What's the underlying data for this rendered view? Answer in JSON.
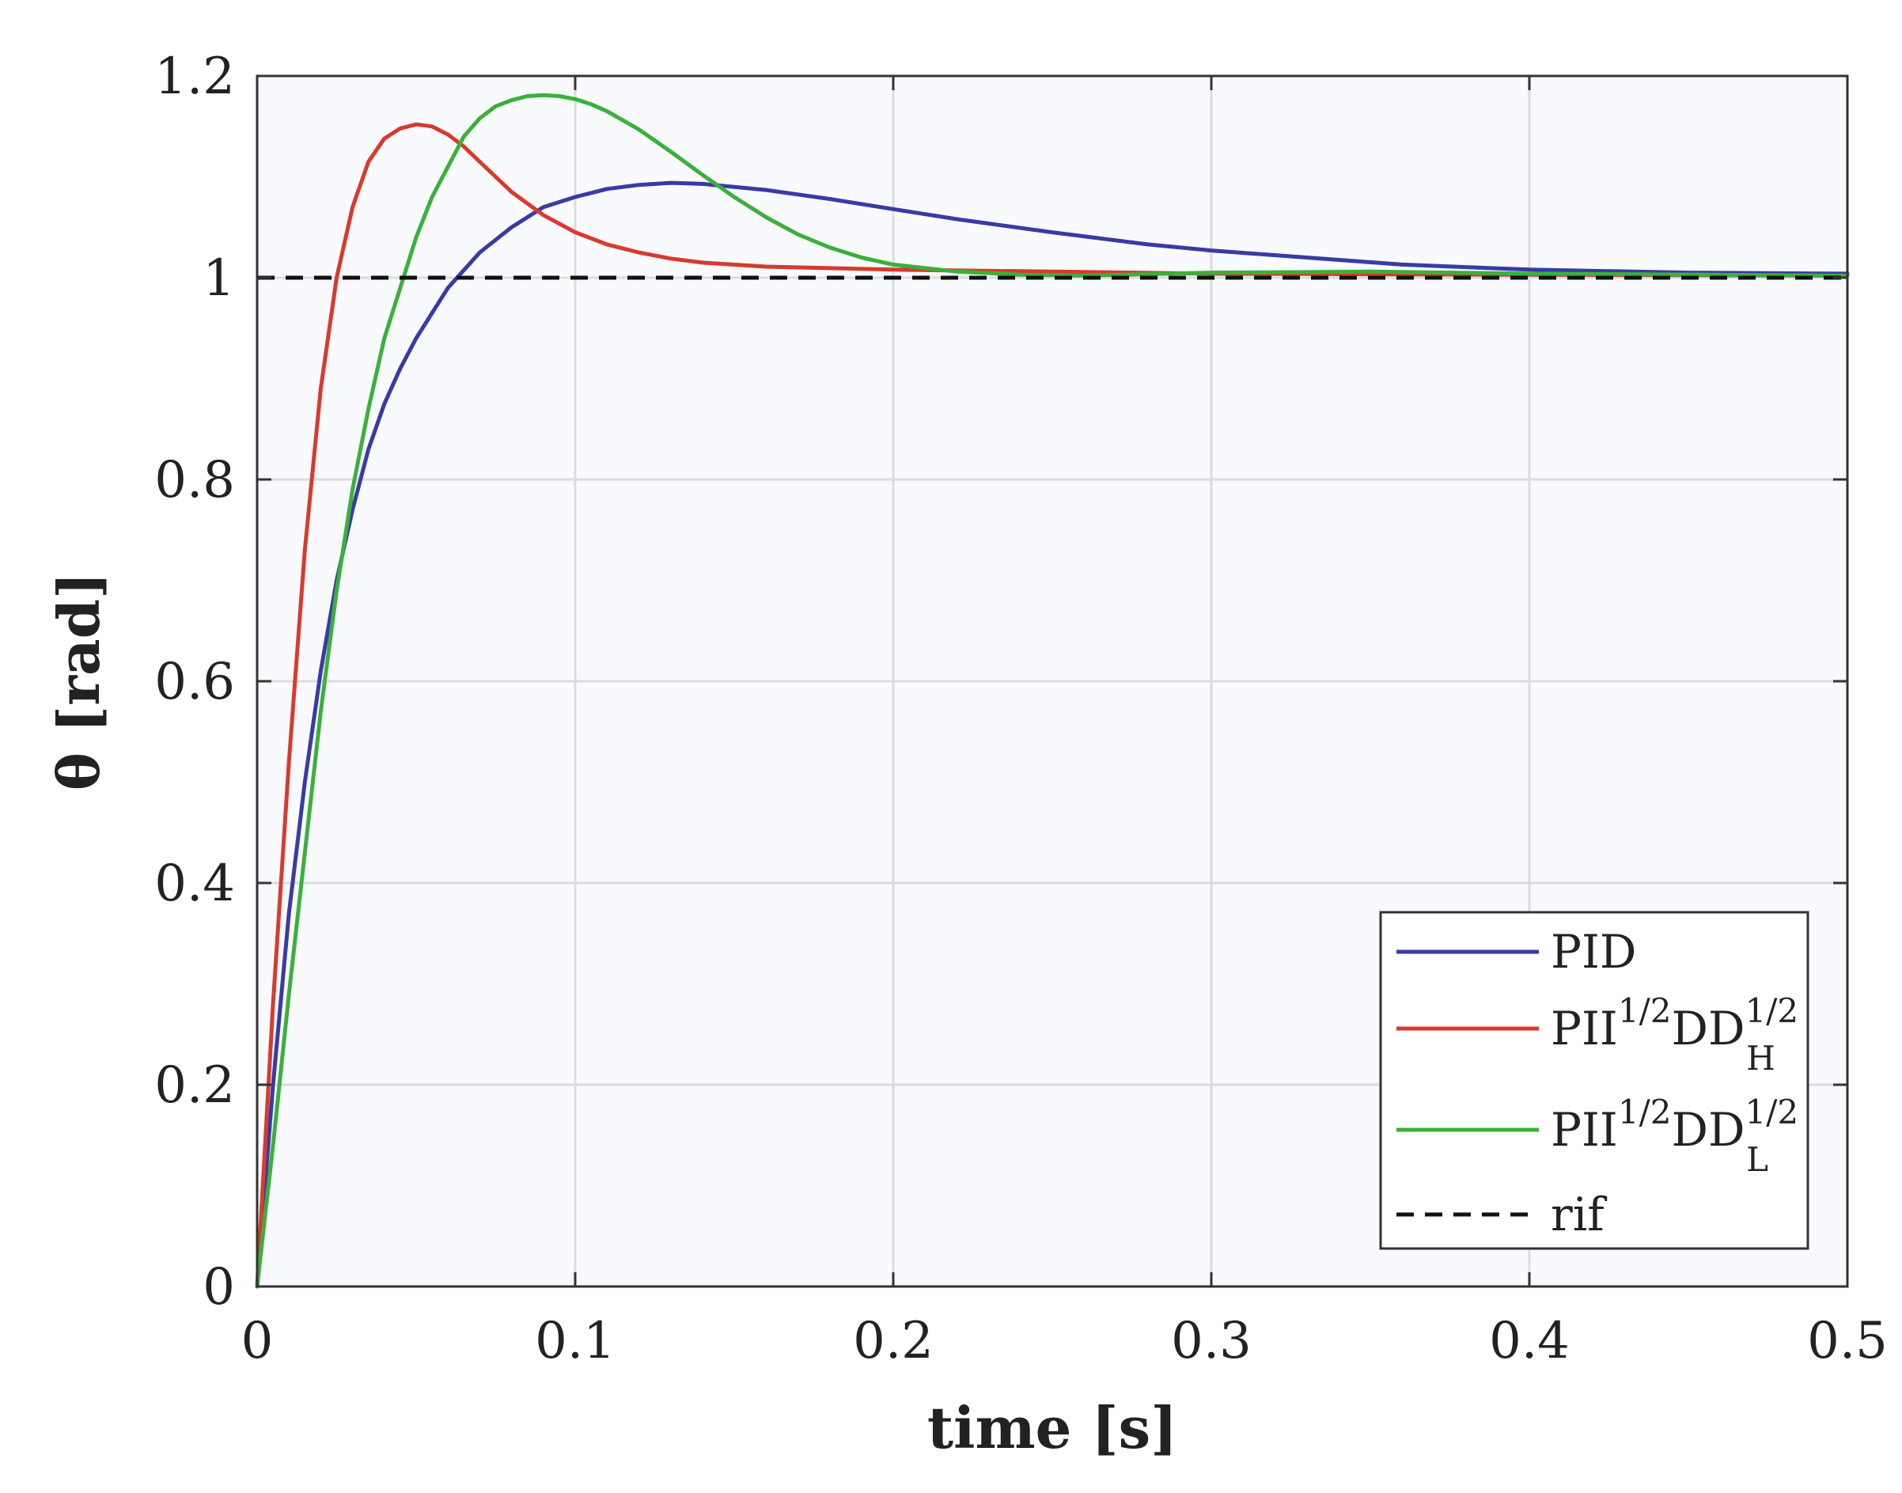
{
  "chart_data": {
    "type": "line",
    "title": "",
    "xlabel": "time [s]",
    "ylabel": "θ [rad]",
    "xlim": [
      0,
      0.5
    ],
    "ylim": [
      0,
      1.2
    ],
    "xticks": [
      0,
      0.1,
      0.2,
      0.3,
      0.4,
      0.5
    ],
    "xtick_labels": [
      "0",
      "0.1",
      "0.2",
      "0.3",
      "0.4",
      "0.5"
    ],
    "yticks": [
      0,
      0.2,
      0.4,
      0.6,
      0.8,
      1.0,
      1.2
    ],
    "ytick_labels": [
      "0",
      "0.2",
      "0.4",
      "0.6",
      "0.8",
      "1",
      "1.2"
    ],
    "grid": true,
    "legend_position": "bottom-right",
    "series": [
      {
        "name": "PID",
        "color": "#3a3aa6",
        "style": "solid",
        "x": [
          0,
          0.005,
          0.01,
          0.015,
          0.02,
          0.025,
          0.03,
          0.035,
          0.04,
          0.045,
          0.05,
          0.06,
          0.07,
          0.08,
          0.09,
          0.1,
          0.11,
          0.12,
          0.13,
          0.14,
          0.15,
          0.16,
          0.18,
          0.2,
          0.22,
          0.25,
          0.28,
          0.3,
          0.33,
          0.36,
          0.4,
          0.45,
          0.5
        ],
        "y": [
          0,
          0.2,
          0.37,
          0.5,
          0.61,
          0.7,
          0.77,
          0.83,
          0.875,
          0.91,
          0.94,
          0.99,
          1.025,
          1.05,
          1.07,
          1.08,
          1.088,
          1.092,
          1.094,
          1.093,
          1.09,
          1.087,
          1.078,
          1.068,
          1.058,
          1.045,
          1.033,
          1.027,
          1.02,
          1.013,
          1.008,
          1.005,
          1.004
        ]
      },
      {
        "name": "PII^{1/2}DD_H^{1/2}",
        "label_base": "PII",
        "label_sup": "1/2",
        "label_mid": "DD",
        "label_sub": "H",
        "color": "#d93a2e",
        "style": "solid",
        "x": [
          0,
          0.005,
          0.01,
          0.015,
          0.02,
          0.025,
          0.03,
          0.035,
          0.04,
          0.045,
          0.05,
          0.055,
          0.06,
          0.065,
          0.07,
          0.075,
          0.08,
          0.09,
          0.1,
          0.11,
          0.12,
          0.13,
          0.14,
          0.16,
          0.2,
          0.25,
          0.3,
          0.4,
          0.5
        ],
        "y": [
          0,
          0.28,
          0.52,
          0.73,
          0.89,
          1.0,
          1.07,
          1.115,
          1.138,
          1.148,
          1.152,
          1.15,
          1.142,
          1.13,
          1.115,
          1.1,
          1.085,
          1.062,
          1.045,
          1.033,
          1.025,
          1.019,
          1.015,
          1.011,
          1.008,
          1.006,
          1.004,
          1.003,
          1.002
        ]
      },
      {
        "name": "PII^{1/2}DD_L^{1/2}",
        "label_base": "PII",
        "label_sup": "1/2",
        "label_mid": "DD",
        "label_sub": "L",
        "color": "#3bb03b",
        "style": "solid",
        "x": [
          0,
          0.005,
          0.01,
          0.015,
          0.02,
          0.025,
          0.03,
          0.035,
          0.04,
          0.045,
          0.05,
          0.055,
          0.06,
          0.065,
          0.07,
          0.075,
          0.08,
          0.085,
          0.09,
          0.095,
          0.1,
          0.105,
          0.11,
          0.12,
          0.13,
          0.14,
          0.15,
          0.16,
          0.17,
          0.18,
          0.19,
          0.2,
          0.22,
          0.24,
          0.26,
          0.3,
          0.35,
          0.4,
          0.5
        ],
        "y": [
          0,
          0.14,
          0.29,
          0.43,
          0.57,
          0.69,
          0.79,
          0.87,
          0.94,
          0.99,
          1.04,
          1.08,
          1.11,
          1.14,
          1.158,
          1.17,
          1.176,
          1.18,
          1.181,
          1.18,
          1.177,
          1.172,
          1.165,
          1.147,
          1.125,
          1.102,
          1.08,
          1.06,
          1.043,
          1.03,
          1.02,
          1.013,
          1.006,
          1.003,
          1.002,
          1.005,
          1.006,
          1.004,
          1.002
        ]
      },
      {
        "name": "rif",
        "color": "#111111",
        "style": "dashed",
        "x": [
          0,
          0.5
        ],
        "y": [
          1,
          1
        ]
      }
    ]
  }
}
